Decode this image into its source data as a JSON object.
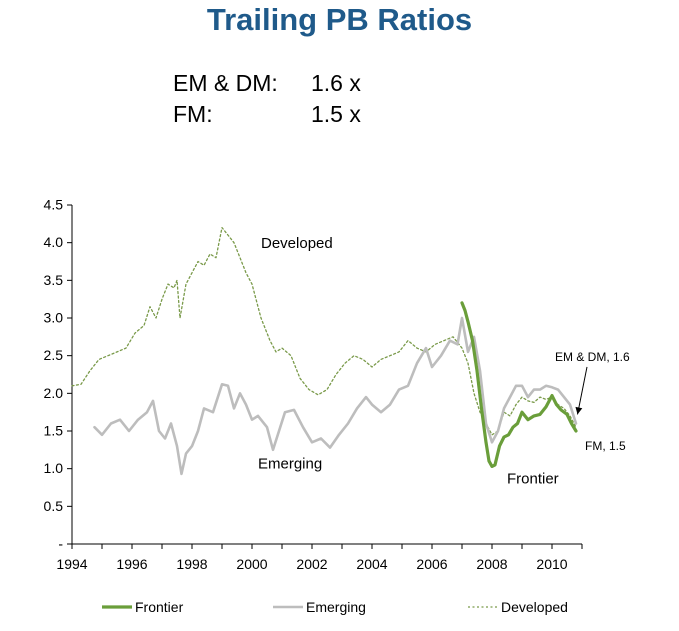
{
  "header": {
    "title": "Trailing PB Ratios",
    "stats": [
      {
        "label": "EM & DM:",
        "value": "1.6 x"
      },
      {
        "label": "FM:",
        "value": "1.5 x"
      }
    ]
  },
  "colors": {
    "title": "#1f5a8a",
    "frontier": "#6a9e3a",
    "emerging": "#bdbdbd",
    "developed": "#7a9a4a"
  },
  "chart_data": {
    "type": "line",
    "title": "",
    "xlabel": "",
    "ylabel": "",
    "xlim": [
      1994,
      2011
    ],
    "ylim": [
      0,
      4.5
    ],
    "x_ticks": [
      "1994",
      "1996",
      "1998",
      "2000",
      "2002",
      "2004",
      "2006",
      "2008",
      "2010"
    ],
    "y_ticks": [
      "-",
      "0.5",
      "1.0",
      "1.5",
      "2.0",
      "2.5",
      "3.0",
      "3.5",
      "4.0",
      "4.5"
    ],
    "grid": false,
    "legend_position": "bottom",
    "series": [
      {
        "name": "Frontier",
        "style": "solid-thick",
        "x": [
          2007.0,
          2007.1,
          2007.2,
          2007.35,
          2007.5,
          2007.65,
          2007.8,
          2007.9,
          2008.0,
          2008.1,
          2008.25,
          2008.4,
          2008.55,
          2008.7,
          2008.85,
          2009.0,
          2009.2,
          2009.4,
          2009.6,
          2009.8,
          2010.0,
          2010.15,
          2010.3,
          2010.5,
          2010.65,
          2010.8
        ],
        "y": [
          3.2,
          3.1,
          2.95,
          2.7,
          2.3,
          1.8,
          1.35,
          1.1,
          1.03,
          1.05,
          1.3,
          1.42,
          1.45,
          1.55,
          1.6,
          1.75,
          1.65,
          1.7,
          1.72,
          1.82,
          1.97,
          1.85,
          1.78,
          1.72,
          1.6,
          1.5
        ]
      },
      {
        "name": "Emerging",
        "style": "solid",
        "x": [
          1994.75,
          1995.0,
          1995.3,
          1995.6,
          1995.9,
          1996.2,
          1996.5,
          1996.7,
          1996.9,
          1997.1,
          1997.3,
          1997.5,
          1997.65,
          1997.8,
          1998.0,
          1998.2,
          1998.4,
          1998.7,
          1999.0,
          1999.2,
          1999.4,
          1999.6,
          1999.8,
          2000.0,
          2000.2,
          2000.5,
          2000.7,
          2000.9,
          2001.1,
          2001.4,
          2001.7,
          2002.0,
          2002.3,
          2002.6,
          2002.9,
          2003.2,
          2003.5,
          2003.8,
          2004.0,
          2004.3,
          2004.6,
          2004.9,
          2005.2,
          2005.5,
          2005.8,
          2006.0,
          2006.3,
          2006.6,
          2006.85,
          2007.0,
          2007.2,
          2007.4,
          2007.6,
          2007.8,
          2008.0,
          2008.2,
          2008.4,
          2008.6,
          2008.8,
          2009.0,
          2009.2,
          2009.4,
          2009.6,
          2009.8,
          2010.0,
          2010.2,
          2010.4,
          2010.6,
          2010.8
        ],
        "y": [
          1.55,
          1.45,
          1.6,
          1.65,
          1.5,
          1.65,
          1.75,
          1.9,
          1.5,
          1.4,
          1.6,
          1.3,
          0.93,
          1.2,
          1.3,
          1.5,
          1.8,
          1.75,
          2.12,
          2.1,
          1.8,
          2.0,
          1.85,
          1.65,
          1.7,
          1.55,
          1.25,
          1.5,
          1.75,
          1.78,
          1.55,
          1.35,
          1.4,
          1.28,
          1.45,
          1.6,
          1.8,
          1.95,
          1.85,
          1.75,
          1.85,
          2.05,
          2.1,
          2.4,
          2.6,
          2.35,
          2.5,
          2.7,
          2.65,
          3.0,
          2.55,
          2.75,
          2.3,
          1.6,
          1.35,
          1.5,
          1.8,
          1.95,
          2.1,
          2.1,
          1.95,
          2.05,
          2.05,
          2.1,
          2.08,
          2.05,
          1.95,
          1.85,
          1.6
        ]
      },
      {
        "name": "Developed",
        "style": "dotted",
        "x": [
          1994.0,
          1994.3,
          1994.6,
          1994.9,
          1995.2,
          1995.5,
          1995.8,
          1996.1,
          1996.4,
          1996.6,
          1996.8,
          1997.0,
          1997.2,
          1997.4,
          1997.5,
          1997.6,
          1997.8,
          1998.0,
          1998.2,
          1998.4,
          1998.6,
          1998.8,
          1999.0,
          1999.2,
          1999.4,
          1999.6,
          1999.8,
          2000.0,
          2000.3,
          2000.6,
          2000.8,
          2001.0,
          2001.3,
          2001.6,
          2001.9,
          2002.2,
          2002.5,
          2002.8,
          2003.1,
          2003.4,
          2003.7,
          2004.0,
          2004.3,
          2004.6,
          2004.9,
          2005.2,
          2005.5,
          2005.8,
          2006.1,
          2006.4,
          2006.7,
          2007.0,
          2007.2,
          2007.4,
          2007.6,
          2007.8,
          2008.0,
          2008.2,
          2008.4,
          2008.6,
          2008.8,
          2009.0,
          2009.2,
          2009.4,
          2009.6,
          2009.8,
          2010.0,
          2010.2,
          2010.4,
          2010.6,
          2010.8
        ],
        "y": [
          2.1,
          2.12,
          2.3,
          2.45,
          2.5,
          2.55,
          2.6,
          2.8,
          2.9,
          3.15,
          3.0,
          3.25,
          3.45,
          3.4,
          3.5,
          3.0,
          3.45,
          3.6,
          3.75,
          3.7,
          3.85,
          3.8,
          4.2,
          4.1,
          4.0,
          3.8,
          3.6,
          3.45,
          3.0,
          2.7,
          2.55,
          2.6,
          2.5,
          2.2,
          2.05,
          1.98,
          2.05,
          2.25,
          2.4,
          2.5,
          2.45,
          2.35,
          2.45,
          2.5,
          2.55,
          2.7,
          2.6,
          2.55,
          2.65,
          2.7,
          2.75,
          2.6,
          2.4,
          2.0,
          1.75,
          1.6,
          1.45,
          1.5,
          1.75,
          1.7,
          1.85,
          1.95,
          1.9,
          1.88,
          1.95,
          1.92,
          1.95,
          1.85,
          1.8,
          1.7,
          1.55
        ]
      }
    ],
    "annotations": [
      {
        "text": "Developed",
        "x": 2000.3,
        "y": 3.93
      },
      {
        "text": "Emerging",
        "x": 2000.2,
        "y": 1.0
      },
      {
        "text": "Frontier",
        "x": 2008.5,
        "y": 0.8
      },
      {
        "text": "EM & DM, 1.6",
        "x": 2010.1,
        "y": 2.43,
        "arrow_to": [
          2010.85,
          1.72
        ]
      },
      {
        "text": "FM,  1.5",
        "x": 2011.1,
        "y": 1.25
      }
    ],
    "legend": [
      "Frontier",
      "Emerging",
      "Developed"
    ]
  }
}
